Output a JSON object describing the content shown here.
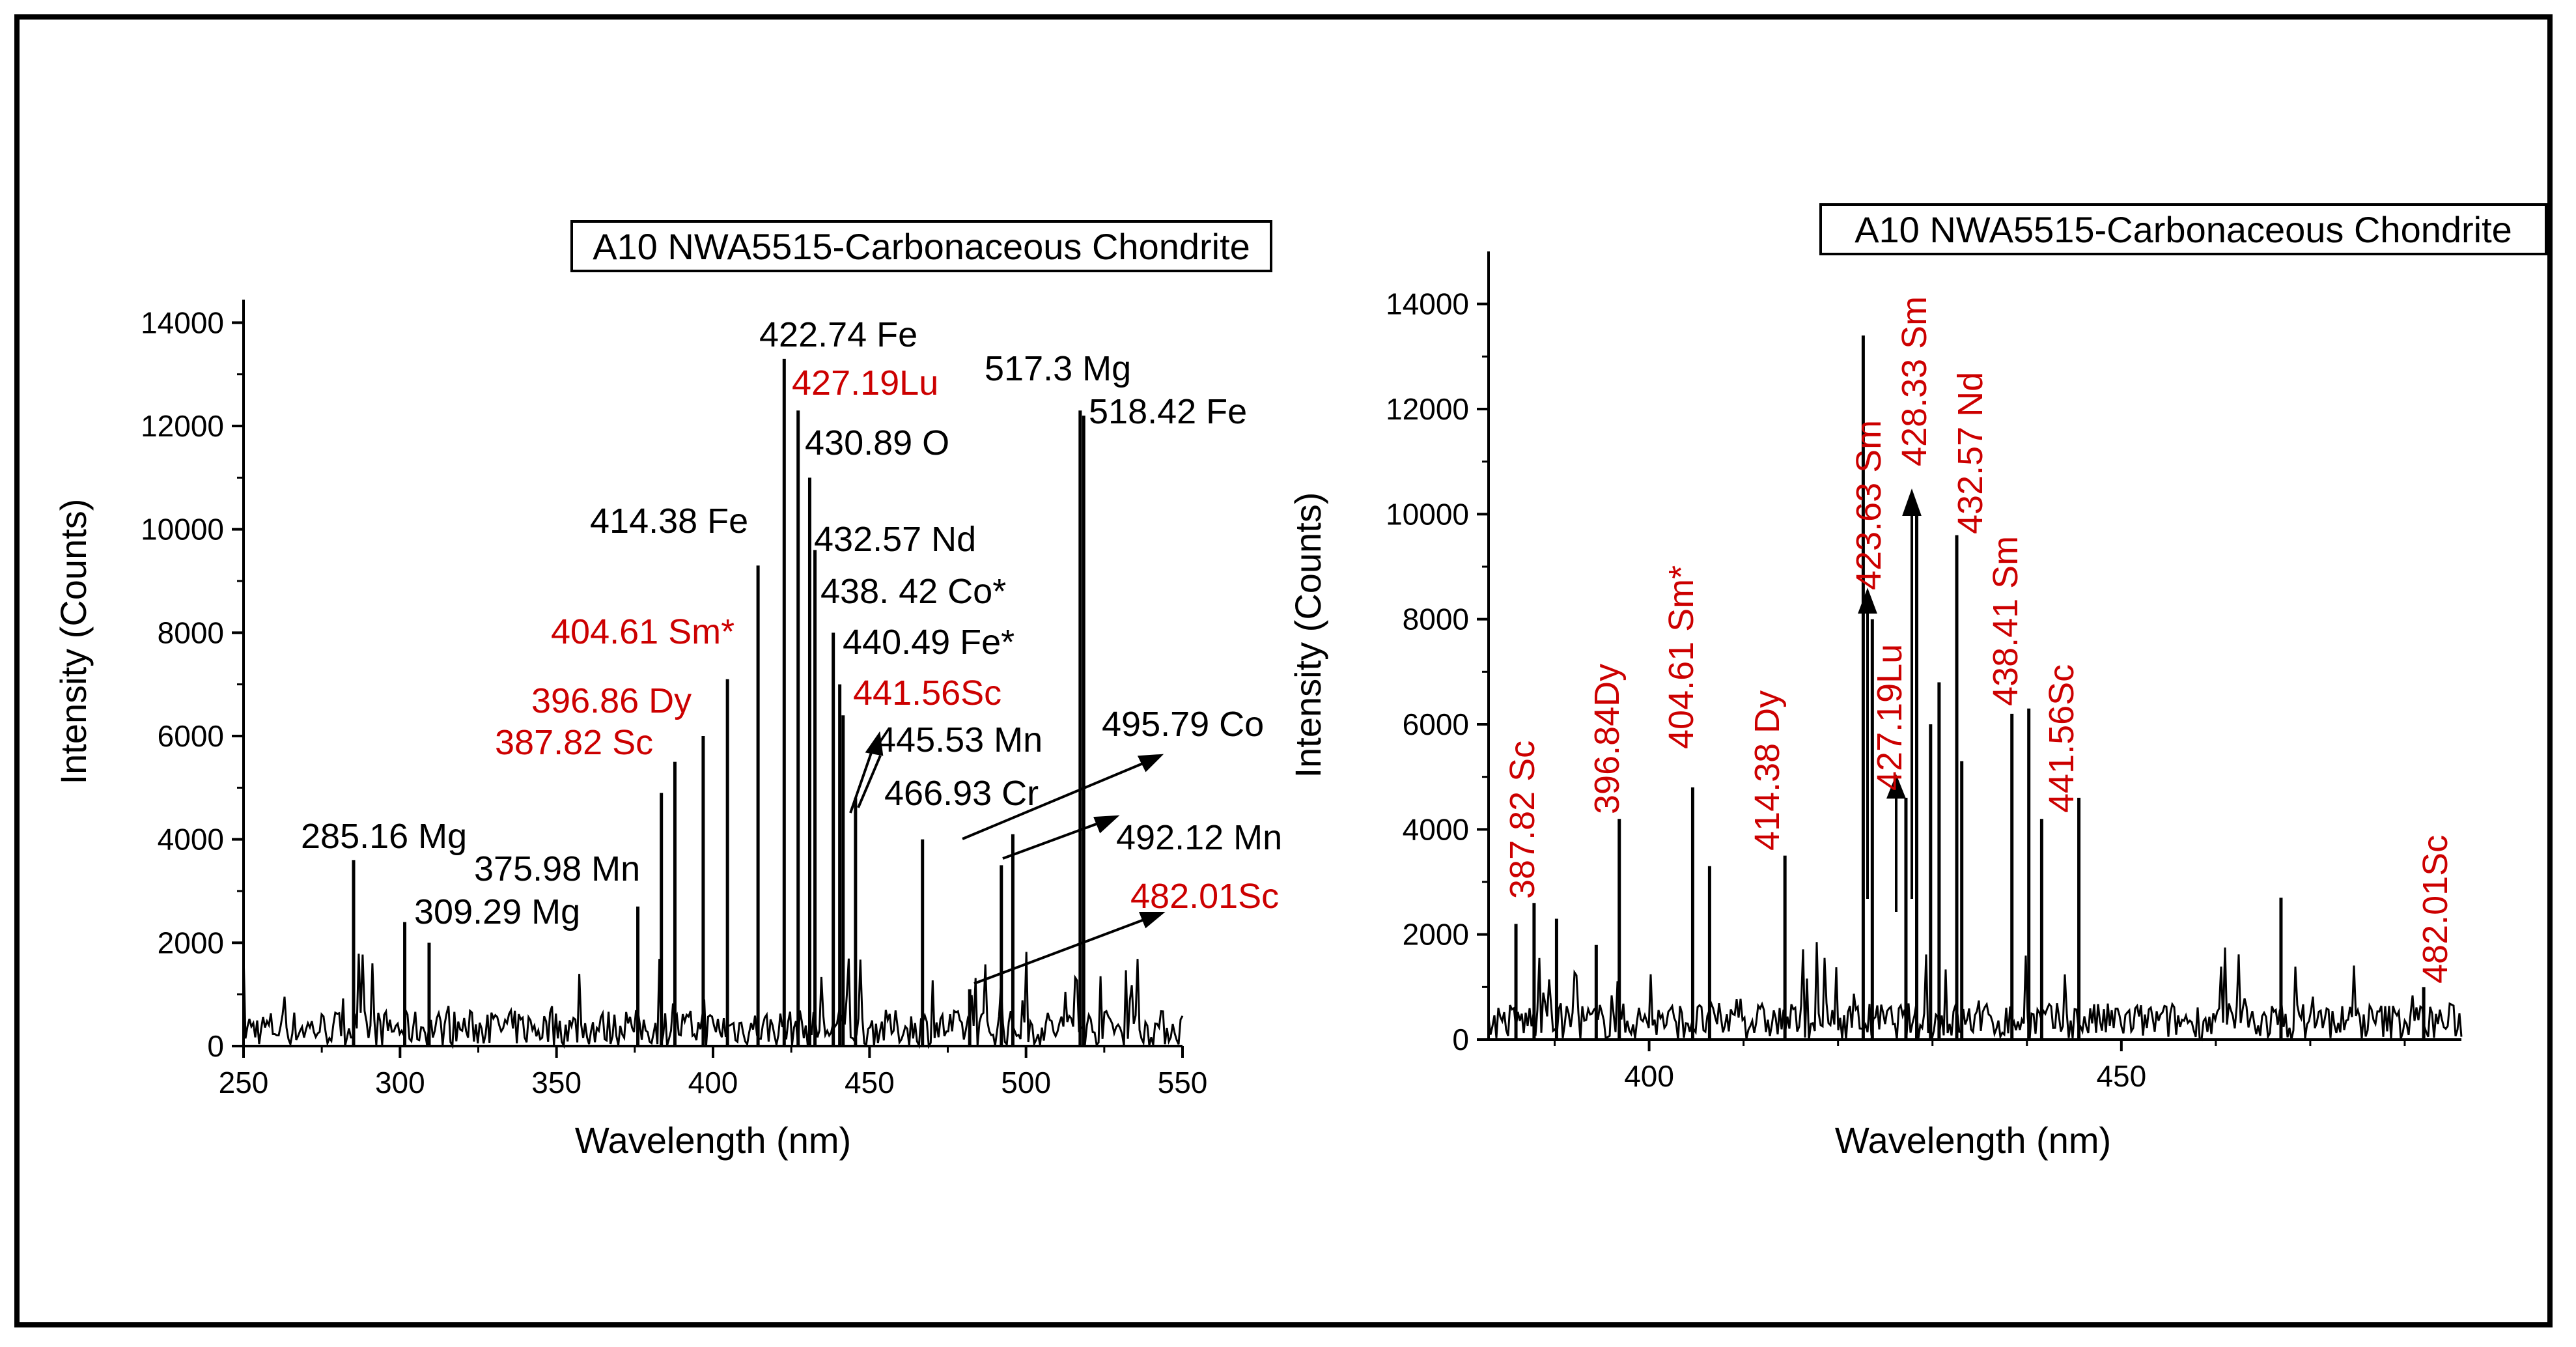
{
  "chart_data": [
    {
      "type": "line",
      "title": "A10 NWA5515-Carbonaceous Chondrite",
      "xlabel": "Wavelength (nm)",
      "ylabel": "Intensity (Counts)",
      "xlim": [
        250,
        550
      ],
      "ylim": [
        0,
        15000
      ],
      "xticks": [
        250,
        300,
        350,
        400,
        450,
        500,
        550
      ],
      "yticks": [
        0,
        2000,
        4000,
        6000,
        8000,
        10000,
        12000,
        14000
      ],
      "grid": false,
      "peaks": [
        {
          "x": 285.16,
          "y": 3600
        },
        {
          "x": 301.5,
          "y": 2400
        },
        {
          "x": 309.29,
          "y": 2000
        },
        {
          "x": 375.98,
          "y": 2700
        },
        {
          "x": 383.5,
          "y": 4900
        },
        {
          "x": 387.82,
          "y": 5500
        },
        {
          "x": 396.86,
          "y": 6000
        },
        {
          "x": 404.61,
          "y": 7100
        },
        {
          "x": 414.38,
          "y": 9300
        },
        {
          "x": 422.74,
          "y": 13300
        },
        {
          "x": 427.19,
          "y": 12300
        },
        {
          "x": 430.89,
          "y": 11000
        },
        {
          "x": 432.57,
          "y": 9600
        },
        {
          "x": 438.42,
          "y": 8000
        },
        {
          "x": 440.49,
          "y": 7000
        },
        {
          "x": 441.56,
          "y": 6400
        },
        {
          "x": 445.53,
          "y": 4800
        },
        {
          "x": 466.93,
          "y": 4000
        },
        {
          "x": 492.12,
          "y": 3500
        },
        {
          "x": 495.79,
          "y": 4100
        },
        {
          "x": 517.3,
          "y": 12300
        },
        {
          "x": 518.42,
          "y": 12200
        },
        {
          "x": 482.01,
          "y": 1100
        }
      ],
      "annotations": [
        {
          "text": "285.16 Mg",
          "color": "#000000"
        },
        {
          "text": "375.98 Mn",
          "color": "#000000"
        },
        {
          "text": "309.29 Mg",
          "color": "#000000"
        },
        {
          "text": "387.82 Sc",
          "color": "#cc0000"
        },
        {
          "text": "396.86  Dy",
          "color": "#cc0000"
        },
        {
          "text": "404.61 Sm*",
          "color": "#cc0000"
        },
        {
          "text": "414.38 Fe",
          "color": "#000000"
        },
        {
          "text": "422.74 Fe",
          "color": "#000000"
        },
        {
          "text": "427.19Lu",
          "color": "#cc0000"
        },
        {
          "text": "430.89 O",
          "color": "#000000"
        },
        {
          "text": "432.57 Nd",
          "color": "#000000"
        },
        {
          "text": "438. 42 Co*",
          "color": "#000000"
        },
        {
          "text": "440.49 Fe*",
          "color": "#000000"
        },
        {
          "text": "441.56Sc",
          "color": "#cc0000"
        },
        {
          "text": "445.53 Mn",
          "color": "#000000"
        },
        {
          "text": "466.93 Cr",
          "color": "#000000"
        },
        {
          "text": "517.3 Mg",
          "color": "#000000"
        },
        {
          "text": "518.42 Fe",
          "color": "#000000"
        },
        {
          "text": "495.79 Co",
          "color": "#000000"
        },
        {
          "text": "492.12 Mn",
          "color": "#000000"
        },
        {
          "text": "482.01Sc",
          "color": "#cc0000"
        }
      ]
    },
    {
      "type": "line",
      "title": "A10 NWA5515-Carbonaceous Chondrite",
      "xlabel": "Wavelength (nm)",
      "ylabel": "Intensity (Counts)",
      "xlim": [
        383,
        486
      ],
      "ylim": [
        0,
        15000
      ],
      "xticks": [
        400,
        450
      ],
      "yticks": [
        0,
        2000,
        4000,
        6000,
        8000,
        10000,
        12000,
        14000
      ],
      "grid": false,
      "peaks": [
        {
          "x": 385.9,
          "y": 2200
        },
        {
          "x": 387.82,
          "y": 2600
        },
        {
          "x": 390.2,
          "y": 2300
        },
        {
          "x": 394.4,
          "y": 1800
        },
        {
          "x": 396.84,
          "y": 4200
        },
        {
          "x": 404.61,
          "y": 4800
        },
        {
          "x": 406.4,
          "y": 3300
        },
        {
          "x": 414.38,
          "y": 3500
        },
        {
          "x": 422.67,
          "y": 13400
        },
        {
          "x": 423.63,
          "y": 8000
        },
        {
          "x": 427.19,
          "y": 4600
        },
        {
          "x": 428.33,
          "y": 10000
        },
        {
          "x": 429.8,
          "y": 6000
        },
        {
          "x": 430.7,
          "y": 6800
        },
        {
          "x": 432.57,
          "y": 9600
        },
        {
          "x": 433.1,
          "y": 5300
        },
        {
          "x": 438.41,
          "y": 6200
        },
        {
          "x": 440.2,
          "y": 6300
        },
        {
          "x": 441.56,
          "y": 4200
        },
        {
          "x": 445.5,
          "y": 4600
        },
        {
          "x": 466.9,
          "y": 2700
        },
        {
          "x": 482.01,
          "y": 1000
        }
      ],
      "annotations": [
        {
          "text": "387.82 Sc",
          "color": "#cc0000"
        },
        {
          "text": "396.84Dy",
          "color": "#cc0000"
        },
        {
          "text": "404.61 Sm*",
          "color": "#cc0000"
        },
        {
          "text": "414.38 Dy",
          "color": "#cc0000"
        },
        {
          "text": "423.63 Sm",
          "color": "#cc0000"
        },
        {
          "text": "427.19Lu",
          "color": "#cc0000"
        },
        {
          "text": "428.33 Sm",
          "color": "#cc0000"
        },
        {
          "text": "432.57 Nd",
          "color": "#cc0000"
        },
        {
          "text": "438.41 Sm",
          "color": "#cc0000"
        },
        {
          "text": "441.56Sc",
          "color": "#cc0000"
        },
        {
          "text": "482.01Sc",
          "color": "#cc0000"
        }
      ]
    }
  ]
}
